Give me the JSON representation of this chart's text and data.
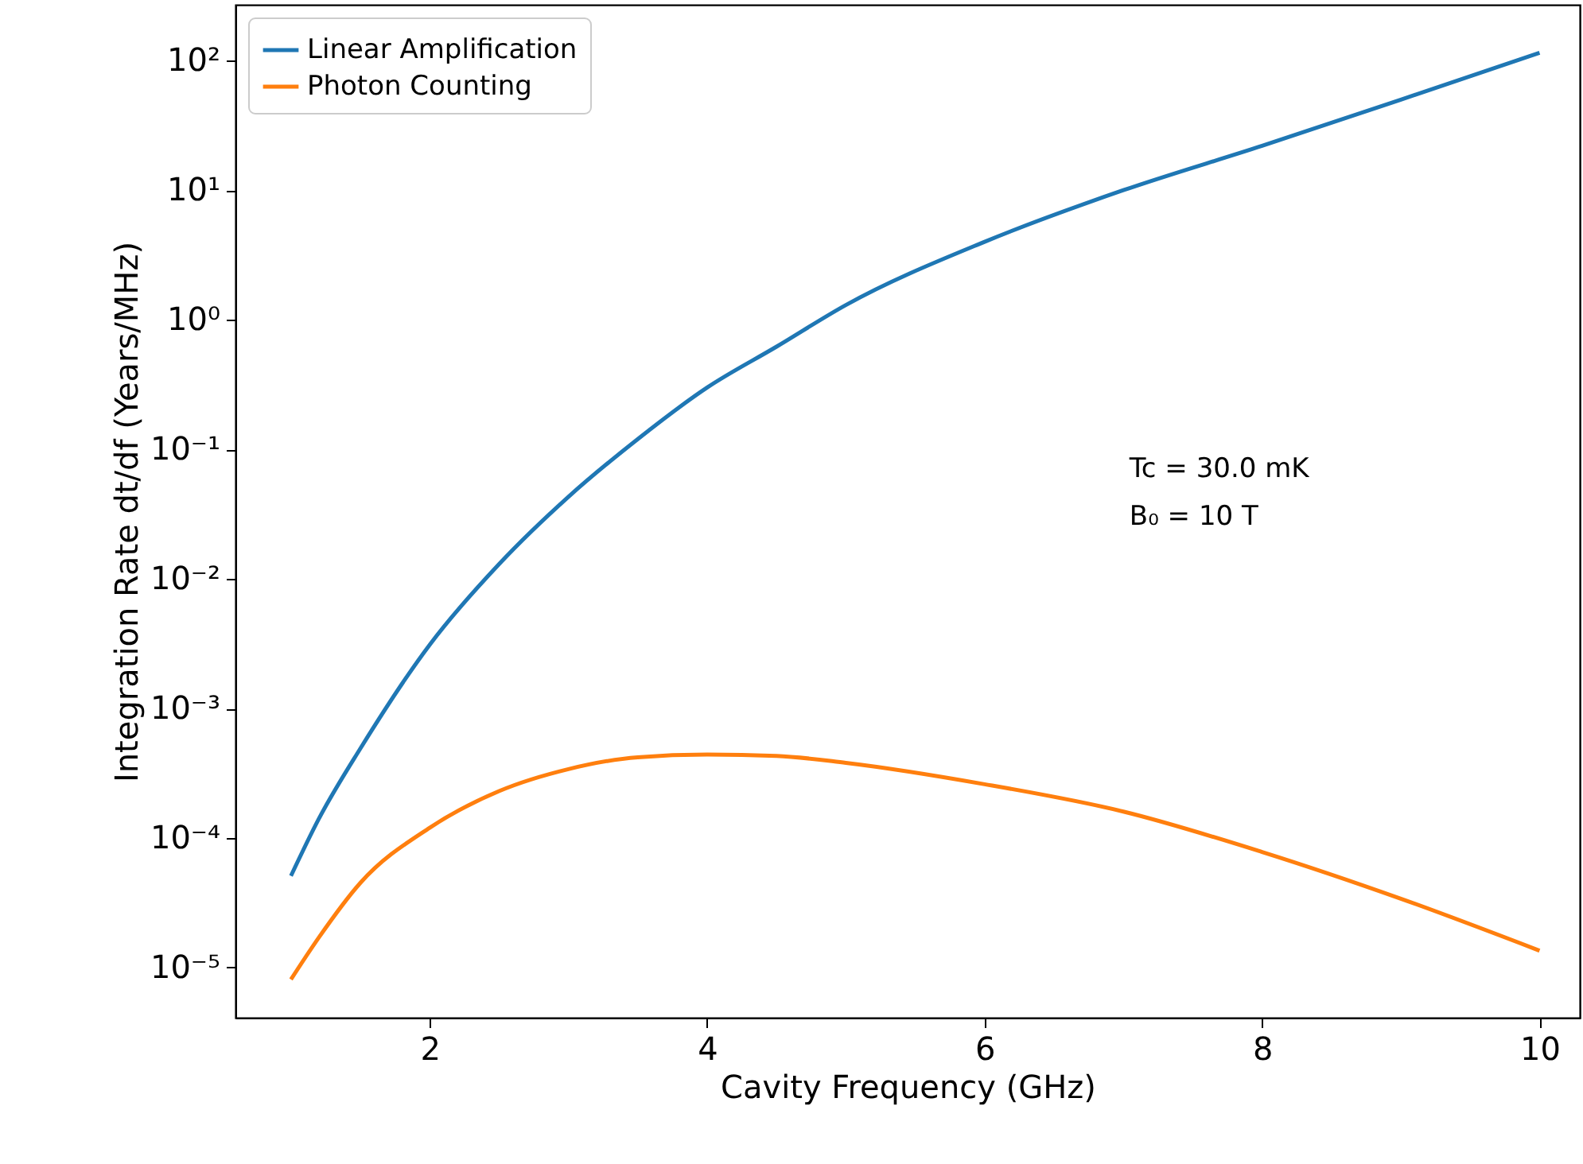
{
  "chart_data": {
    "type": "line",
    "xlabel": "Cavity Frequency (GHz)",
    "ylabel": "Integration Rate dt/df (Years/MHz)",
    "x": [
      1,
      1.2,
      1.5,
      2,
      2.5,
      3,
      3.5,
      4,
      4.5,
      5,
      6,
      7,
      8,
      9,
      10
    ],
    "series": [
      {
        "name": "Linear Amplification",
        "color": "#1f77b4",
        "values": [
          5.1e-05,
          0.00014,
          0.00049,
          0.0031,
          0.013,
          0.043,
          0.12,
          0.3,
          0.62,
          1.3,
          4.0,
          10,
          22,
          50,
          115
        ]
      },
      {
        "name": "Photon Counting",
        "color": "#ff7f0e",
        "values": [
          8.1e-06,
          1.7e-05,
          4.5e-05,
          0.00012,
          0.00023,
          0.00034,
          0.00042,
          0.00044,
          0.00043,
          0.00038,
          0.00026,
          0.00016,
          7.8e-05,
          3.4e-05,
          1.35e-05
        ]
      }
    ],
    "log": "y",
    "xlim": [
      0.6,
      10.29
    ],
    "ylim": [
      4.1e-06,
      270
    ],
    "xticks": [
      2,
      4,
      6,
      8,
      10
    ],
    "yticks": [
      {
        "value": 1e-05,
        "label": "10⁻⁵"
      },
      {
        "value": 0.0001,
        "label": "10⁻⁴"
      },
      {
        "value": 0.001,
        "label": "10⁻³"
      },
      {
        "value": 0.01,
        "label": "10⁻²"
      },
      {
        "value": 0.1,
        "label": "10⁻¹"
      },
      {
        "value": 1,
        "label": "10⁰"
      },
      {
        "value": 10,
        "label": "10¹"
      },
      {
        "value": 100,
        "label": "10²"
      }
    ],
    "annotations": [
      "Tc = 30.0 mK",
      "B₀ = 10 T"
    ],
    "legend": "top left",
    "grid": false,
    "marker": "none",
    "line_style": "solid"
  }
}
